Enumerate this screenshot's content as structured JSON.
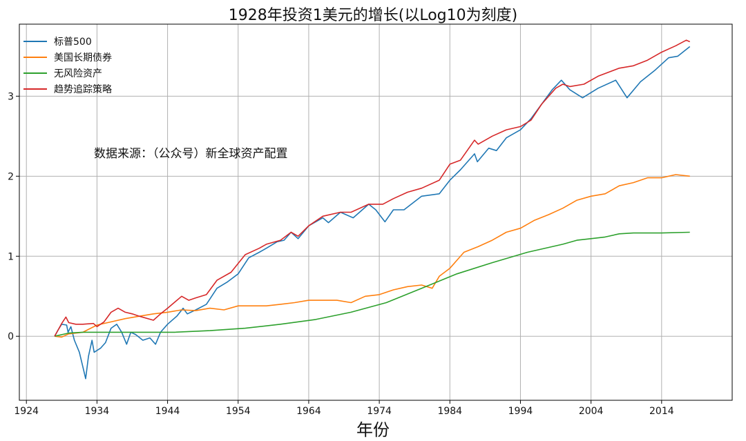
{
  "chart_data": {
    "type": "line",
    "title": "1928年投资1美元的增长(以Log10为刻度)",
    "xlabel": "年份",
    "ylabel": "",
    "xlim": [
      1923,
      2024
    ],
    "ylim": [
      -0.8,
      3.9
    ],
    "xticks": [
      1924,
      1934,
      1944,
      1954,
      1964,
      1974,
      1984,
      1994,
      2004,
      2014
    ],
    "yticks": [
      0,
      1,
      2,
      3
    ],
    "grid": true,
    "legend_position": "top-left",
    "annotation": "数据来源：（公众号）新全球资产配置",
    "series": [
      {
        "name": "标普500",
        "color": "#1f77b4",
        "points": [
          [
            1928,
            0
          ],
          [
            1928.5,
            0.08
          ],
          [
            1929,
            0.15
          ],
          [
            1929.7,
            0.14
          ],
          [
            1929.9,
            0.05
          ],
          [
            1930.3,
            0.12
          ],
          [
            1930.8,
            -0.05
          ],
          [
            1931.5,
            -0.2
          ],
          [
            1932.1,
            -0.42
          ],
          [
            1932.4,
            -0.53
          ],
          [
            1932.8,
            -0.25
          ],
          [
            1933.3,
            -0.05
          ],
          [
            1933.6,
            -0.2
          ],
          [
            1934.5,
            -0.15
          ],
          [
            1935.2,
            -0.08
          ],
          [
            1936,
            0.1
          ],
          [
            1936.8,
            0.15
          ],
          [
            1937.5,
            0.05
          ],
          [
            1938.2,
            -0.1
          ],
          [
            1938.8,
            0.05
          ],
          [
            1939.5,
            0.02
          ],
          [
            1940.5,
            -0.05
          ],
          [
            1941.5,
            -0.02
          ],
          [
            1942.3,
            -0.1
          ],
          [
            1943,
            0.05
          ],
          [
            1944,
            0.15
          ],
          [
            1945.3,
            0.25
          ],
          [
            1946.2,
            0.35
          ],
          [
            1946.8,
            0.28
          ],
          [
            1948,
            0.33
          ],
          [
            1949.5,
            0.4
          ],
          [
            1951,
            0.6
          ],
          [
            1952.5,
            0.68
          ],
          [
            1954,
            0.78
          ],
          [
            1955.5,
            0.98
          ],
          [
            1957,
            1.05
          ],
          [
            1958,
            1.1
          ],
          [
            1959.5,
            1.18
          ],
          [
            1960.5,
            1.2
          ],
          [
            1961.5,
            1.3
          ],
          [
            1962.5,
            1.22
          ],
          [
            1964,
            1.38
          ],
          [
            1966,
            1.48
          ],
          [
            1966.8,
            1.42
          ],
          [
            1968.5,
            1.55
          ],
          [
            1970.3,
            1.48
          ],
          [
            1972.5,
            1.65
          ],
          [
            1973.5,
            1.58
          ],
          [
            1974.8,
            1.43
          ],
          [
            1976,
            1.58
          ],
          [
            1977.5,
            1.58
          ],
          [
            1980,
            1.75
          ],
          [
            1982.5,
            1.78
          ],
          [
            1984,
            1.95
          ],
          [
            1985.5,
            2.08
          ],
          [
            1987.5,
            2.28
          ],
          [
            1987.9,
            2.18
          ],
          [
            1989.5,
            2.35
          ],
          [
            1990.6,
            2.32
          ],
          [
            1992,
            2.48
          ],
          [
            1994,
            2.58
          ],
          [
            1995.5,
            2.72
          ],
          [
            1997,
            2.9
          ],
          [
            1998.5,
            3.08
          ],
          [
            1999.8,
            3.2
          ],
          [
            2001,
            3.08
          ],
          [
            2002.8,
            2.98
          ],
          [
            2005,
            3.1
          ],
          [
            2007.5,
            3.2
          ],
          [
            2009.1,
            2.98
          ],
          [
            2011,
            3.18
          ],
          [
            2013,
            3.32
          ],
          [
            2015,
            3.48
          ],
          [
            2016.3,
            3.5
          ],
          [
            2018,
            3.62
          ]
        ]
      },
      {
        "name": "美国长期债券",
        "color": "#ff7f0e",
        "points": [
          [
            1928,
            0
          ],
          [
            1929,
            -0.01
          ],
          [
            1930,
            0.03
          ],
          [
            1932,
            0.05
          ],
          [
            1934,
            0.14
          ],
          [
            1936,
            0.18
          ],
          [
            1938,
            0.22
          ],
          [
            1940,
            0.25
          ],
          [
            1942,
            0.28
          ],
          [
            1944,
            0.3
          ],
          [
            1946,
            0.33
          ],
          [
            1948,
            0.32
          ],
          [
            1950,
            0.35
          ],
          [
            1952,
            0.33
          ],
          [
            1954,
            0.38
          ],
          [
            1956,
            0.38
          ],
          [
            1958,
            0.38
          ],
          [
            1960,
            0.4
          ],
          [
            1962,
            0.42
          ],
          [
            1964,
            0.45
          ],
          [
            1966,
            0.45
          ],
          [
            1968,
            0.45
          ],
          [
            1970,
            0.42
          ],
          [
            1972,
            0.5
          ],
          [
            1974,
            0.52
          ],
          [
            1976,
            0.58
          ],
          [
            1978,
            0.62
          ],
          [
            1980,
            0.64
          ],
          [
            1981.5,
            0.6
          ],
          [
            1982.5,
            0.75
          ],
          [
            1984,
            0.85
          ],
          [
            1986,
            1.05
          ],
          [
            1988,
            1.12
          ],
          [
            1990,
            1.2
          ],
          [
            1992,
            1.3
          ],
          [
            1994,
            1.35
          ],
          [
            1996,
            1.45
          ],
          [
            1998,
            1.52
          ],
          [
            2000,
            1.6
          ],
          [
            2002,
            1.7
          ],
          [
            2004,
            1.75
          ],
          [
            2006,
            1.78
          ],
          [
            2008,
            1.88
          ],
          [
            2010,
            1.92
          ],
          [
            2012,
            1.98
          ],
          [
            2014,
            1.98
          ],
          [
            2016,
            2.02
          ],
          [
            2018,
            2.0
          ]
        ]
      },
      {
        "name": "无风险资产",
        "color": "#2ca02c",
        "points": [
          [
            1928,
            0
          ],
          [
            1930,
            0.04
          ],
          [
            1932,
            0.05
          ],
          [
            1936,
            0.05
          ],
          [
            1940,
            0.05
          ],
          [
            1945,
            0.05
          ],
          [
            1950,
            0.07
          ],
          [
            1955,
            0.1
          ],
          [
            1960,
            0.15
          ],
          [
            1965,
            0.21
          ],
          [
            1970,
            0.3
          ],
          [
            1975,
            0.42
          ],
          [
            1980,
            0.6
          ],
          [
            1985,
            0.78
          ],
          [
            1990,
            0.92
          ],
          [
            1995,
            1.05
          ],
          [
            2000,
            1.15
          ],
          [
            2002,
            1.2
          ],
          [
            2004,
            1.22
          ],
          [
            2006,
            1.24
          ],
          [
            2008,
            1.28
          ],
          [
            2010,
            1.29
          ],
          [
            2014,
            1.29
          ],
          [
            2018,
            1.3
          ]
        ]
      },
      {
        "name": "趋势追踪策略",
        "color": "#d62728",
        "points": [
          [
            1928,
            0
          ],
          [
            1928.5,
            0.08
          ],
          [
            1929,
            0.16
          ],
          [
            1929.6,
            0.24
          ],
          [
            1930,
            0.17
          ],
          [
            1931,
            0.15
          ],
          [
            1932,
            0.15
          ],
          [
            1933.5,
            0.16
          ],
          [
            1934,
            0.12
          ],
          [
            1935,
            0.18
          ],
          [
            1936,
            0.3
          ],
          [
            1937,
            0.35
          ],
          [
            1938,
            0.3
          ],
          [
            1939,
            0.28
          ],
          [
            1940,
            0.25
          ],
          [
            1942,
            0.2
          ],
          [
            1943,
            0.28
          ],
          [
            1944,
            0.35
          ],
          [
            1946,
            0.5
          ],
          [
            1947,
            0.45
          ],
          [
            1948,
            0.48
          ],
          [
            1949.5,
            0.52
          ],
          [
            1951,
            0.7
          ],
          [
            1953,
            0.8
          ],
          [
            1955,
            1.02
          ],
          [
            1957,
            1.1
          ],
          [
            1958,
            1.15
          ],
          [
            1960,
            1.2
          ],
          [
            1961.5,
            1.3
          ],
          [
            1962.5,
            1.25
          ],
          [
            1964,
            1.38
          ],
          [
            1966,
            1.5
          ],
          [
            1968.5,
            1.55
          ],
          [
            1970,
            1.55
          ],
          [
            1972.5,
            1.65
          ],
          [
            1974.5,
            1.65
          ],
          [
            1976,
            1.72
          ],
          [
            1978,
            1.8
          ],
          [
            1980,
            1.85
          ],
          [
            1982.5,
            1.95
          ],
          [
            1984,
            2.15
          ],
          [
            1985.5,
            2.2
          ],
          [
            1987.5,
            2.45
          ],
          [
            1988,
            2.4
          ],
          [
            1990,
            2.5
          ],
          [
            1992,
            2.58
          ],
          [
            1994,
            2.62
          ],
          [
            1995.5,
            2.7
          ],
          [
            1997,
            2.9
          ],
          [
            1999,
            3.1
          ],
          [
            2000,
            3.15
          ],
          [
            2001,
            3.12
          ],
          [
            2003,
            3.15
          ],
          [
            2005,
            3.25
          ],
          [
            2008,
            3.35
          ],
          [
            2010,
            3.38
          ],
          [
            2012,
            3.45
          ],
          [
            2014,
            3.55
          ],
          [
            2016,
            3.63
          ],
          [
            2017.5,
            3.7
          ],
          [
            2018,
            3.68
          ]
        ]
      }
    ]
  }
}
